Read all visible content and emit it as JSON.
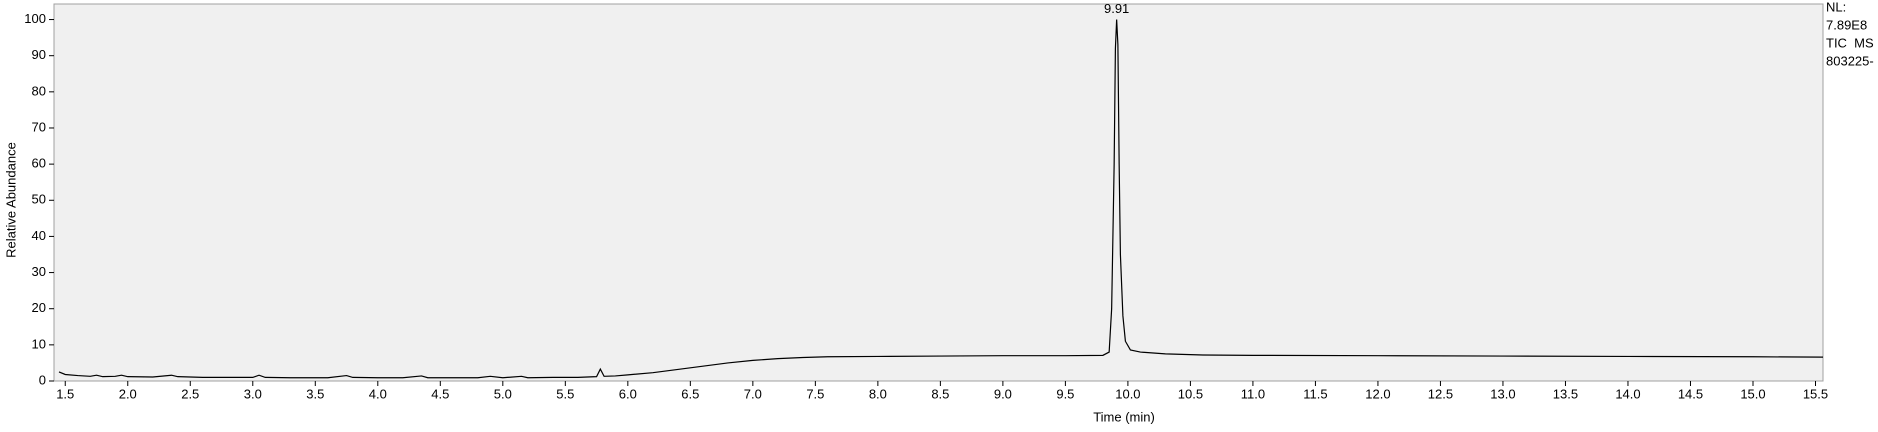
{
  "chart_data": {
    "type": "line",
    "x_label": "Time (min)",
    "y_label": "Relative Abundance",
    "side_labels": [
      "NL:",
      "7.89E8",
      "TIC  MS",
      "803225-"
    ],
    "annotations": [
      {
        "text": "9.91",
        "x": 9.91,
        "y": 100
      }
    ],
    "xlim": [
      1.41,
      15.56
    ],
    "ylim": [
      0,
      104.3
    ],
    "xticks": [
      {
        "value": 1.5,
        "label": "1.5"
      },
      {
        "value": 2,
        "label": "2.0"
      },
      {
        "value": 2.5,
        "label": "2.5"
      },
      {
        "value": 3,
        "label": "3.0"
      },
      {
        "value": 3.5,
        "label": "3.5"
      },
      {
        "value": 4,
        "label": "4.0"
      },
      {
        "value": 4.5,
        "label": "4.5"
      },
      {
        "value": 5,
        "label": "5.0"
      },
      {
        "value": 5.5,
        "label": "5.5"
      },
      {
        "value": 6,
        "label": "6.0"
      },
      {
        "value": 6.5,
        "label": "6.5"
      },
      {
        "value": 7,
        "label": "7.0"
      },
      {
        "value": 7.5,
        "label": "7.5"
      },
      {
        "value": 8,
        "label": "8.0"
      },
      {
        "value": 8.5,
        "label": "8.5"
      },
      {
        "value": 9,
        "label": "9.0"
      },
      {
        "value": 9.5,
        "label": "9.5"
      },
      {
        "value": 10,
        "label": "10.0"
      },
      {
        "value": 10.5,
        "label": "10.5"
      },
      {
        "value": 11,
        "label": "11.0"
      },
      {
        "value": 11.5,
        "label": "11.5"
      },
      {
        "value": 12,
        "label": "12.0"
      },
      {
        "value": 12.5,
        "label": "12.5"
      },
      {
        "value": 13,
        "label": "13.0"
      },
      {
        "value": 13.5,
        "label": "13.5"
      },
      {
        "value": 14,
        "label": "14.0"
      },
      {
        "value": 14.5,
        "label": "14.5"
      },
      {
        "value": 15,
        "label": "15.0"
      },
      {
        "value": 15.5,
        "label": "15.5"
      }
    ],
    "yticks": [
      0,
      10,
      20,
      30,
      40,
      50,
      60,
      70,
      80,
      90,
      100
    ],
    "series": [
      {
        "color": "#000000",
        "x": [
          1.45,
          1.5,
          1.6,
          1.7,
          1.75,
          1.8,
          1.9,
          1.95,
          2.0,
          2.2,
          2.35,
          2.4,
          2.6,
          2.8,
          3.0,
          3.05,
          3.1,
          3.3,
          3.5,
          3.6,
          3.75,
          3.8,
          4.0,
          4.2,
          4.35,
          4.4,
          4.6,
          4.8,
          4.9,
          5.0,
          5.15,
          5.2,
          5.4,
          5.6,
          5.75,
          5.78,
          5.81,
          5.9,
          6.0,
          6.2,
          6.4,
          6.6,
          6.8,
          7.0,
          7.2,
          7.4,
          7.6,
          8.0,
          8.5,
          9.0,
          9.5,
          9.8,
          9.85,
          9.87,
          9.89,
          9.9,
          9.91,
          9.92,
          9.93,
          9.94,
          9.96,
          9.98,
          10.02,
          10.1,
          10.3,
          10.6,
          11,
          12,
          13,
          14,
          15,
          15.56
        ],
        "values": [
          2.5,
          1.8,
          1.5,
          1.3,
          1.6,
          1.2,
          1.3,
          1.6,
          1.2,
          1.1,
          1.6,
          1.2,
          1.0,
          1.0,
          1.0,
          1.6,
          1.0,
          0.9,
          0.9,
          0.9,
          1.5,
          1.0,
          0.9,
          0.9,
          1.4,
          0.9,
          0.9,
          0.9,
          1.3,
          0.9,
          1.3,
          0.9,
          1.0,
          1.0,
          1.2,
          3.3,
          1.3,
          1.4,
          1.7,
          2.3,
          3.2,
          4.1,
          5.0,
          5.7,
          6.2,
          6.5,
          6.7,
          6.8,
          6.9,
          7.0,
          7.0,
          7.1,
          8,
          20,
          60,
          92,
          100,
          93,
          60,
          35,
          18,
          11,
          8.6,
          8.0,
          7.5,
          7.2,
          7.1,
          7.0,
          6.9,
          6.8,
          6.7,
          6.6
        ]
      }
    ]
  }
}
